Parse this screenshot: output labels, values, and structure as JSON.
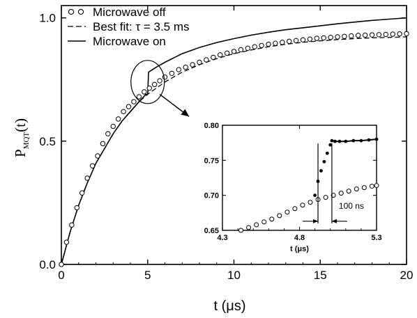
{
  "chart_data": [
    {
      "type": "line",
      "name": "main",
      "xlabel": "t (μs)",
      "ylabel_main": "P",
      "ylabel_sub": "MQT",
      "ylabel_suffix": "(t)",
      "xlim": [
        0,
        20
      ],
      "ylim": [
        0.0,
        1.05
      ],
      "xticks": [
        0,
        5,
        10,
        15,
        20
      ],
      "xtick_labels": [
        "0",
        "5",
        "10",
        "15",
        "20"
      ],
      "yticks": [
        0.0,
        0.5,
        1.0
      ],
      "ytick_labels": [
        "0.0",
        "0.5",
        "1.0"
      ],
      "legend": {
        "placement": "top-left",
        "entries": [
          {
            "marker": "circles",
            "label": "Microwave off"
          },
          {
            "marker": "dashed",
            "label": "Best fit: τ = 3.5 ms"
          },
          {
            "marker": "solid",
            "label": "Microwave on"
          }
        ]
      },
      "series": [
        {
          "name": "Microwave off",
          "style": "open-circles",
          "x": [
            0.0,
            0.3,
            0.6,
            0.9,
            1.2,
            1.5,
            1.8,
            2.1,
            2.4,
            2.7,
            3.0,
            3.3,
            3.6,
            3.9,
            4.2,
            4.5,
            4.8,
            5.1,
            5.4,
            5.7,
            6.0,
            6.4,
            6.8,
            7.2,
            7.6,
            8.0,
            8.4,
            8.8,
            9.2,
            9.6,
            10.0,
            10.4,
            10.8,
            11.2,
            11.6,
            12.0,
            12.4,
            12.8,
            13.2,
            13.6,
            14.0,
            14.4,
            14.8,
            15.2,
            15.6,
            16.0,
            16.4,
            16.8,
            17.2,
            17.6,
            18.0,
            18.4,
            18.8,
            19.2,
            19.6,
            20.0
          ],
          "y": [
            0.0,
            0.09,
            0.16,
            0.23,
            0.29,
            0.35,
            0.4,
            0.44,
            0.49,
            0.53,
            0.56,
            0.59,
            0.62,
            0.64,
            0.66,
            0.68,
            0.7,
            0.715,
            0.73,
            0.745,
            0.76,
            0.775,
            0.79,
            0.8,
            0.81,
            0.82,
            0.83,
            0.84,
            0.85,
            0.857,
            0.864,
            0.871,
            0.877,
            0.883,
            0.888,
            0.893,
            0.897,
            0.901,
            0.905,
            0.908,
            0.911,
            0.914,
            0.917,
            0.919,
            0.921,
            0.923,
            0.925,
            0.927,
            0.929,
            0.93,
            0.931,
            0.932,
            0.933,
            0.934,
            0.935,
            0.936
          ]
        },
        {
          "name": "Best fit",
          "style": "dashed",
          "x": [
            0.0,
            0.5,
            1.0,
            1.5,
            2.0,
            2.5,
            3.0,
            3.5,
            4.0,
            4.5,
            5.0,
            6.0,
            7.0,
            8.0,
            9.0,
            10.0,
            11.0,
            12.0,
            13.0,
            14.0,
            15.0,
            16.0,
            17.0,
            18.0,
            19.0,
            20.0
          ],
          "y": [
            0.0,
            0.13,
            0.24,
            0.33,
            0.41,
            0.47,
            0.53,
            0.58,
            0.62,
            0.66,
            0.69,
            0.74,
            0.78,
            0.81,
            0.835,
            0.855,
            0.87,
            0.883,
            0.893,
            0.901,
            0.907,
            0.912,
            0.916,
            0.919,
            0.921,
            0.923
          ]
        },
        {
          "name": "Microwave on",
          "style": "solid",
          "x": [
            0.0,
            0.5,
            1.0,
            1.5,
            2.0,
            2.5,
            3.0,
            3.5,
            4.0,
            4.5,
            4.9,
            5.0,
            5.05,
            5.5,
            6.0,
            7.0,
            8.0,
            9.0,
            10.0,
            11.0,
            12.0,
            13.0,
            14.0,
            15.0,
            16.0,
            17.0,
            18.0,
            19.0,
            20.0
          ],
          "y": [
            0.0,
            0.13,
            0.24,
            0.33,
            0.41,
            0.47,
            0.53,
            0.58,
            0.62,
            0.66,
            0.69,
            0.69,
            0.78,
            0.8,
            0.82,
            0.855,
            0.88,
            0.9,
            0.916,
            0.93,
            0.942,
            0.952,
            0.96,
            0.968,
            0.976,
            0.983,
            0.99,
            0.995,
            1.0
          ]
        }
      ],
      "annotations": [
        {
          "type": "ellipse",
          "center_x": 5.0,
          "center_y": 0.74
        },
        {
          "type": "arrow",
          "from": [
            5.7,
            0.69
          ],
          "to": [
            7.4,
            0.6
          ]
        }
      ]
    },
    {
      "type": "scatter",
      "name": "inset",
      "xlabel": "t (μs)",
      "xlim": [
        4.3,
        5.3
      ],
      "ylim": [
        0.65,
        0.8
      ],
      "xticks": [
        4.3,
        4.8,
        5.3
      ],
      "xtick_labels": [
        "4.3",
        "4.8",
        "5.3"
      ],
      "yticks": [
        0.65,
        0.7,
        0.75,
        0.8
      ],
      "ytick_labels": [
        "0.65",
        "0.70",
        "0.75",
        "0.80"
      ],
      "annotation_text": "100 ns",
      "series": [
        {
          "name": "Microwave off",
          "style": "open-circles",
          "x": [
            4.42,
            4.47,
            4.52,
            4.57,
            4.62,
            4.67,
            4.72,
            4.77,
            4.82,
            4.87,
            4.92,
            4.97,
            5.02,
            5.07,
            5.12,
            5.17,
            5.22,
            5.27,
            5.3
          ],
          "y": [
            0.65,
            0.654,
            0.658,
            0.662,
            0.666,
            0.671,
            0.676,
            0.681,
            0.686,
            0.69,
            0.694,
            0.697,
            0.7,
            0.703,
            0.706,
            0.709,
            0.711,
            0.713,
            0.714
          ]
        },
        {
          "name": "Microwave on",
          "style": "filled-dots",
          "x": [
            4.42,
            4.47,
            4.52,
            4.57,
            4.62,
            4.67,
            4.72,
            4.77,
            4.82,
            4.87,
            4.9,
            4.92,
            4.94,
            4.96,
            4.98,
            5.0,
            5.01,
            5.03,
            5.06,
            5.1,
            5.15,
            5.2,
            5.25,
            5.3
          ],
          "y": [
            0.65,
            0.653,
            0.657,
            0.661,
            0.665,
            0.67,
            0.675,
            0.68,
            0.685,
            0.69,
            0.7,
            0.72,
            0.735,
            0.748,
            0.76,
            0.772,
            0.778,
            0.777,
            0.777,
            0.777,
            0.778,
            0.778,
            0.779,
            0.78
          ]
        }
      ],
      "markers": [
        {
          "type": "vertical-line",
          "x": 4.92
        },
        {
          "type": "vertical-line",
          "x": 5.01
        }
      ]
    }
  ]
}
